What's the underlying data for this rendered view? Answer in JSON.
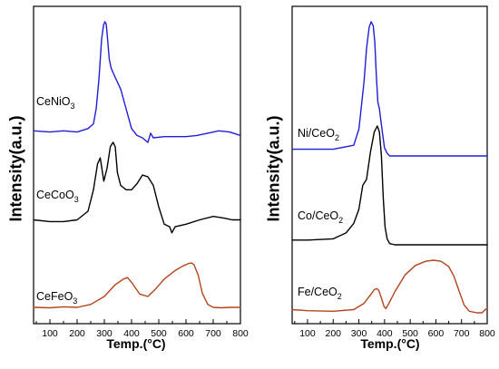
{
  "chart_data": [
    {
      "type": "line",
      "title": "",
      "xlabel": "Temp.(°C)",
      "ylabel": "Intensity(a.u.)",
      "xlim": [
        40,
        800
      ],
      "xticks": [
        100,
        200,
        300,
        400,
        500,
        600,
        700,
        800
      ],
      "yticks": "none",
      "grid": false,
      "series": [
        {
          "name": "CeNiO3",
          "label_main": "CeNiO",
          "label_sub": "3",
          "color": "#1f1fd6",
          "x": [
            40,
            100,
            150,
            200,
            240,
            260,
            270,
            280,
            290,
            297,
            302,
            307,
            312,
            318,
            325,
            340,
            360,
            380,
            400,
            420,
            440,
            460,
            470,
            480,
            520,
            560,
            600,
            640,
            680,
            720,
            760,
            800
          ],
          "y": [
            0.06,
            0.05,
            0.06,
            0.05,
            0.08,
            0.12,
            0.25,
            0.5,
            0.85,
            0.97,
            1.0,
            0.98,
            0.85,
            0.68,
            0.6,
            0.52,
            0.42,
            0.25,
            0.08,
            0.02,
            0.0,
            -0.04,
            0.04,
            0.0,
            0.01,
            0.01,
            0.01,
            0.02,
            0.04,
            0.06,
            0.05,
            0.02
          ]
        },
        {
          "name": "CeCoO3",
          "label_main": "CeCoO",
          "label_sub": "3",
          "color": "#000000",
          "x": [
            40,
            100,
            150,
            200,
            240,
            260,
            275,
            285,
            298,
            310,
            322,
            332,
            340,
            348,
            360,
            380,
            400,
            420,
            440,
            460,
            480,
            500,
            520,
            540,
            548,
            560,
            600,
            650,
            700,
            740,
            770,
            800
          ],
          "y": [
            0.1,
            0.08,
            0.08,
            0.1,
            0.2,
            0.45,
            0.75,
            0.82,
            0.55,
            0.7,
            0.95,
            1.0,
            0.95,
            0.65,
            0.5,
            0.45,
            0.45,
            0.52,
            0.62,
            0.6,
            0.5,
            0.25,
            0.05,
            0.02,
            -0.05,
            0.02,
            0.05,
            0.1,
            0.14,
            0.12,
            0.1,
            0.1
          ]
        },
        {
          "name": "CeFeO3",
          "label_main": "CeFeO",
          "label_sub": "3",
          "color": "#b5431e",
          "x": [
            40,
            100,
            150,
            200,
            250,
            300,
            340,
            370,
            385,
            400,
            430,
            460,
            490,
            520,
            560,
            590,
            610,
            620,
            630,
            645,
            660,
            680,
            700,
            730,
            760,
            800
          ],
          "y": [
            0.02,
            0.01,
            0.03,
            0.02,
            0.08,
            0.25,
            0.5,
            0.62,
            0.65,
            0.55,
            0.3,
            0.25,
            0.42,
            0.62,
            0.8,
            0.9,
            0.95,
            0.96,
            0.92,
            0.7,
            0.32,
            0.08,
            0.02,
            0.01,
            0.02,
            0.02
          ]
        }
      ]
    },
    {
      "type": "line",
      "title": "",
      "xlabel": "Temp.(°C)",
      "ylabel": "Intensity(a.u.)",
      "xlim": [
        40,
        800
      ],
      "xticks": [
        100,
        200,
        300,
        400,
        500,
        600,
        700,
        800
      ],
      "yticks": "none",
      "grid": false,
      "series": [
        {
          "name": "Ni/CeO2",
          "label_main": "Ni/CeO",
          "label_sub": "2",
          "color": "#1f1fd6",
          "x": [
            40,
            100,
            200,
            280,
            300,
            320,
            330,
            340,
            348,
            356,
            362,
            368,
            374,
            380,
            390,
            400,
            410,
            420,
            450,
            500,
            600,
            700,
            800
          ],
          "y": [
            0.05,
            0.05,
            0.05,
            0.08,
            0.2,
            0.55,
            0.8,
            0.96,
            1.0,
            0.97,
            0.85,
            0.6,
            0.4,
            0.35,
            0.2,
            0.06,
            0.02,
            0.0,
            0.0,
            0.0,
            0.0,
            0.0,
            0.0
          ]
        },
        {
          "name": "Co/CeO2",
          "label_main": "Co/CeO",
          "label_sub": "2",
          "color": "#000000",
          "x": [
            40,
            100,
            200,
            250,
            280,
            300,
            315,
            330,
            345,
            360,
            372,
            380,
            388,
            395,
            402,
            410,
            420,
            440,
            500,
            600,
            700,
            800
          ],
          "y": [
            0.04,
            0.04,
            0.05,
            0.1,
            0.18,
            0.3,
            0.5,
            0.55,
            0.78,
            0.95,
            1.0,
            0.95,
            0.75,
            0.4,
            0.15,
            0.05,
            0.01,
            0.0,
            0.0,
            0.0,
            0.0,
            0.0
          ]
        },
        {
          "name": "Fe/CeO2",
          "label_main": "Fe/CeO",
          "label_sub": "2",
          "color": "#b5431e",
          "x": [
            40,
            100,
            200,
            280,
            320,
            345,
            360,
            370,
            378,
            388,
            398,
            405,
            415,
            440,
            480,
            520,
            560,
            590,
            620,
            650,
            670,
            690,
            710,
            730,
            760,
            780,
            790,
            800
          ],
          "y": [
            0.06,
            0.04,
            0.03,
            0.06,
            0.18,
            0.34,
            0.44,
            0.46,
            0.42,
            0.28,
            0.12,
            0.08,
            0.16,
            0.4,
            0.72,
            0.9,
            0.98,
            1.0,
            0.98,
            0.88,
            0.7,
            0.42,
            0.15,
            0.03,
            0.0,
            0.0,
            0.05,
            0.09
          ]
        }
      ]
    }
  ]
}
